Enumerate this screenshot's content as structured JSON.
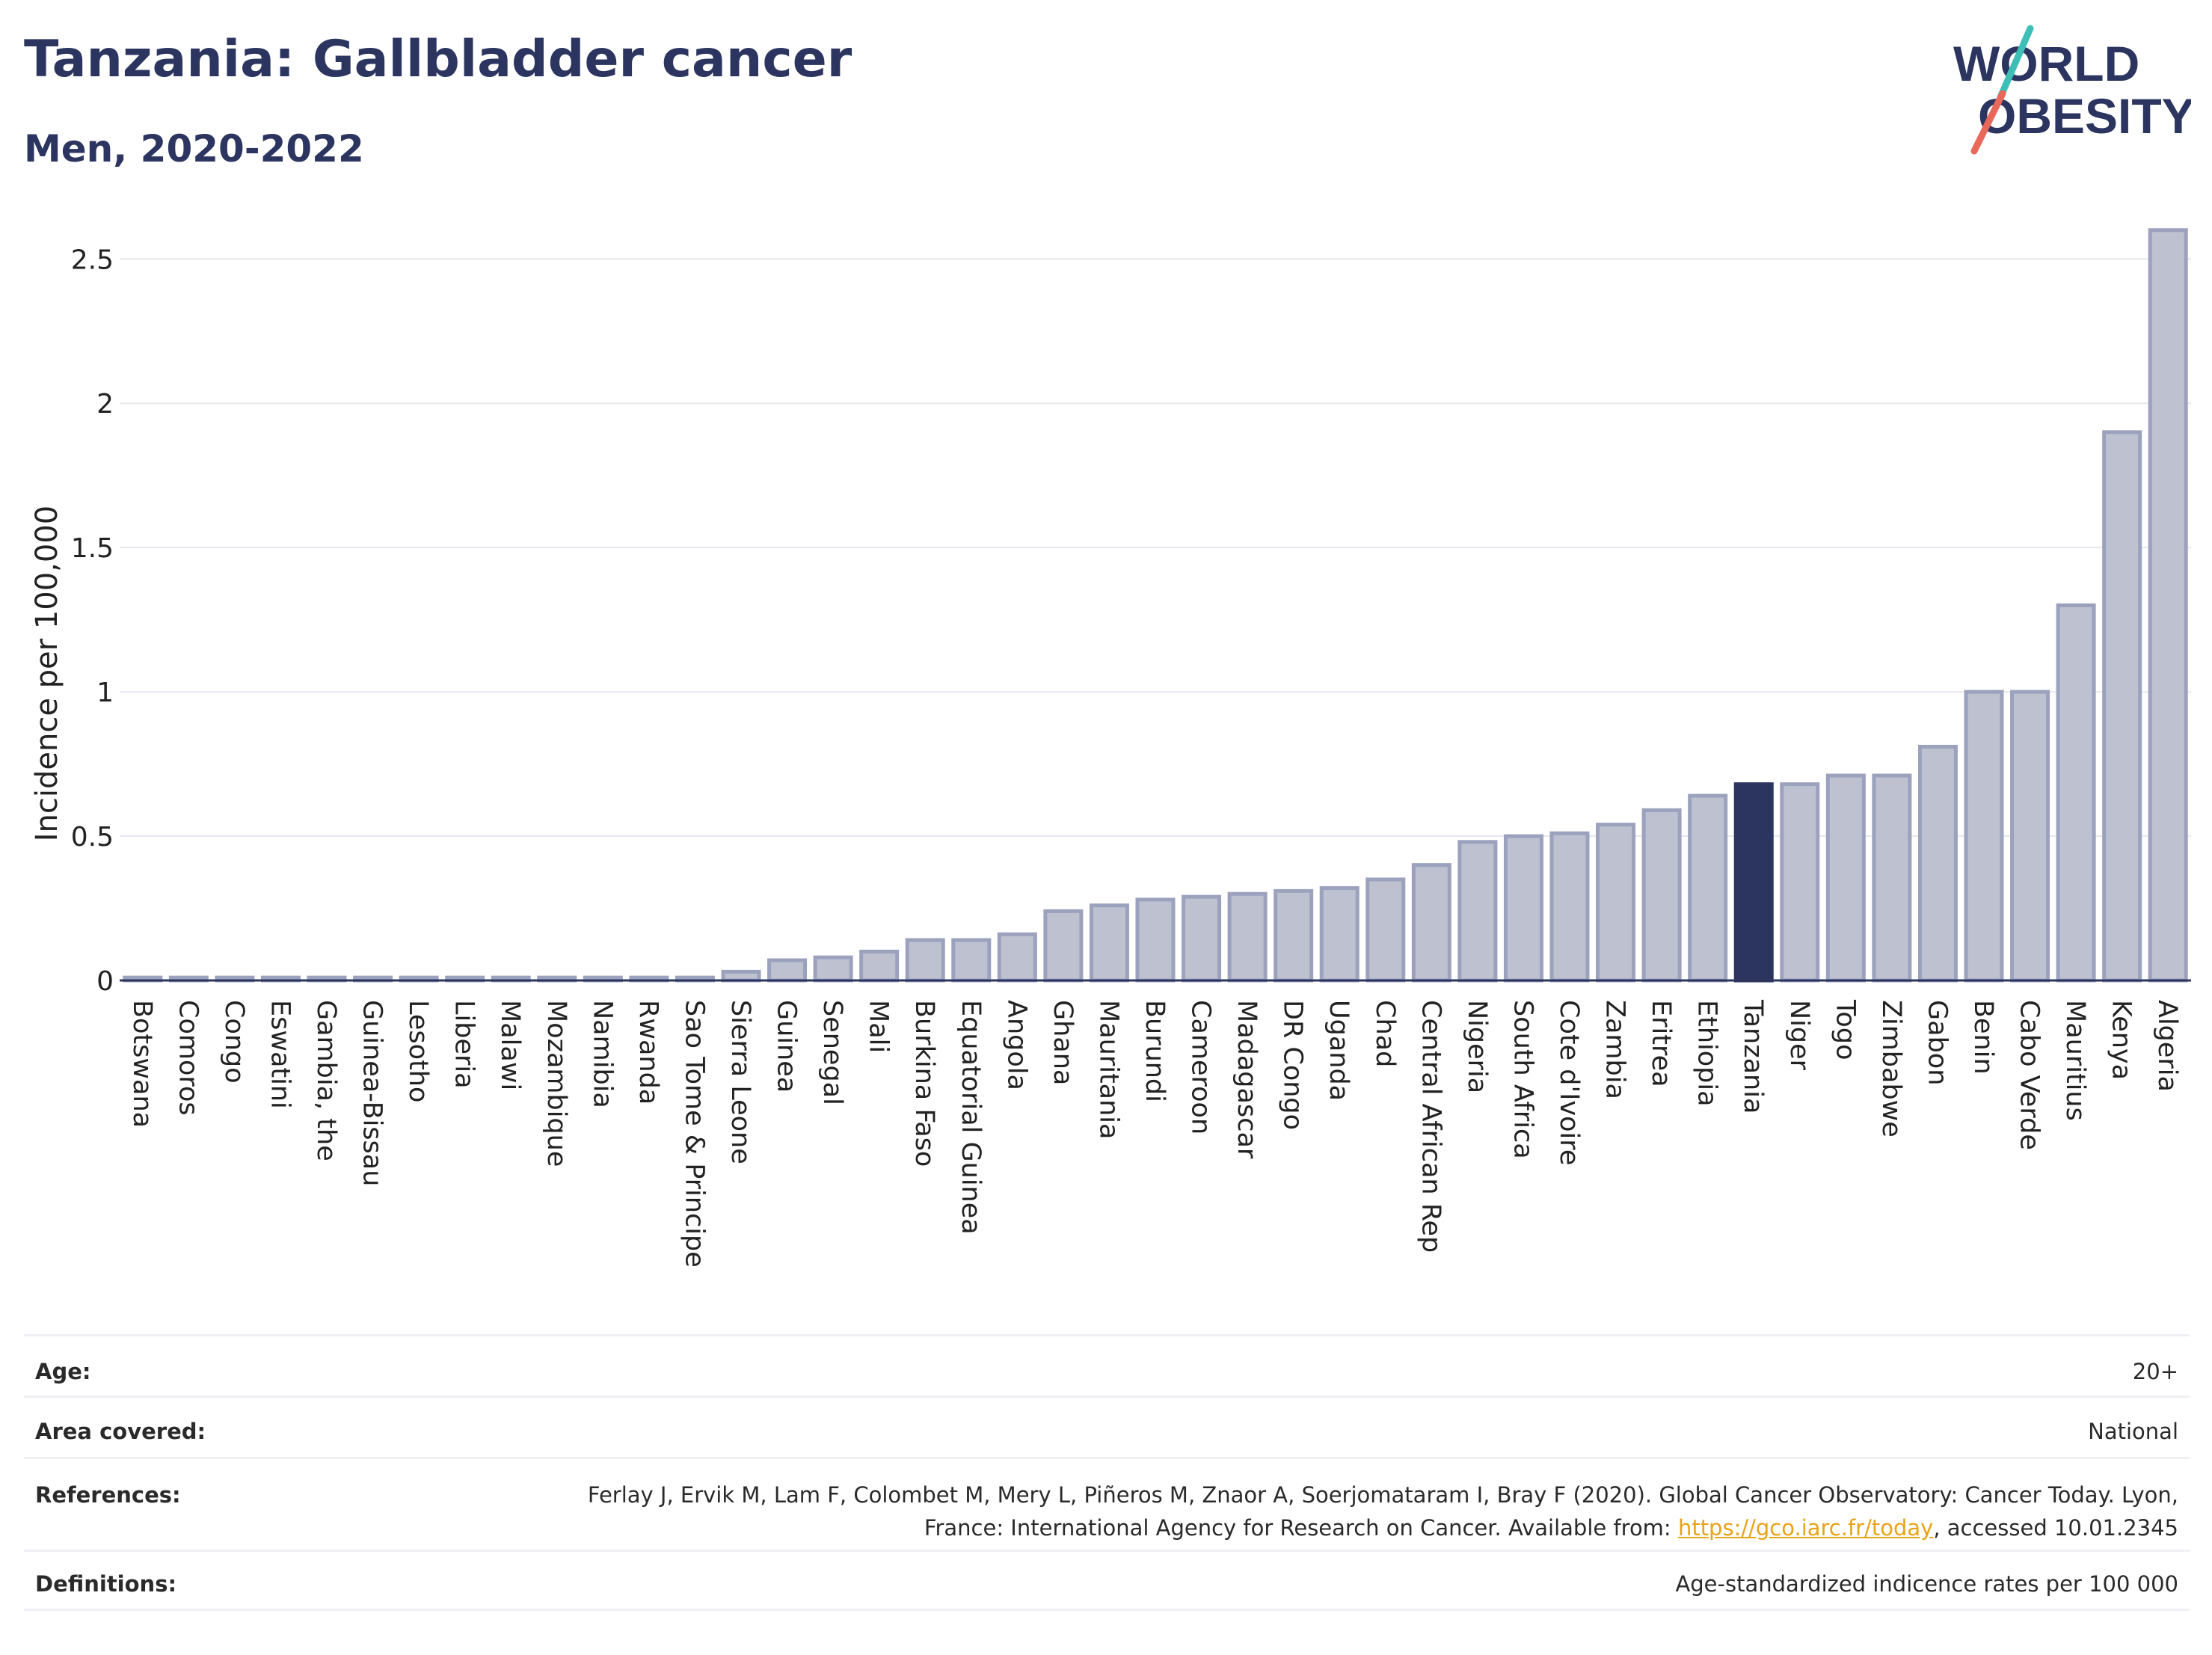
{
  "header": {
    "title": "Tanzania: Gallbladder cancer",
    "subtitle": "Men, 2020-2022"
  },
  "logo": {
    "line1": "WORLD",
    "line2": "OBESITY",
    "text_color": "#2b3560",
    "slash_colors": [
      "#3dbfb8",
      "#e8685a"
    ]
  },
  "chart_data": {
    "type": "bar",
    "title": "Tanzania: Gallbladder cancer",
    "subtitle": "Men, 2020-2022",
    "ylabel": "Incidence per 100,000",
    "xlabel": "",
    "ylim": [
      0,
      2.62
    ],
    "yticks": [
      0,
      0.5,
      1,
      1.5,
      2,
      2.5
    ],
    "ytick_labels": [
      "0",
      "0.5",
      "1",
      "1.5",
      "2",
      "2.5"
    ],
    "grid": true,
    "highlight": "Tanzania",
    "colors": {
      "bar": "#bdc1d0",
      "bar_edge": "#9ca2bd",
      "highlight": "#2b3560",
      "grid": "#e6e8ee"
    },
    "categories": [
      "Botswana",
      "Comoros",
      "Congo",
      "Eswatini",
      "Gambia, the",
      "Guinea-Bissau",
      "Lesotho",
      "Liberia",
      "Malawi",
      "Mozambique",
      "Namibia",
      "Rwanda",
      "Sao Tome & Principe",
      "Sierra Leone",
      "Guinea",
      "Senegal",
      "Mali",
      "Burkina Faso",
      "Equatorial Guinea",
      "Angola",
      "Ghana",
      "Mauritania",
      "Burundi",
      "Cameroon",
      "Madagascar",
      "DR Congo",
      "Uganda",
      "Chad",
      "Central African Rep",
      "Nigeria",
      "South Africa",
      "Cote d'Ivoire",
      "Zambia",
      "Eritrea",
      "Ethiopia",
      "Tanzania",
      "Niger",
      "Togo",
      "Zimbabwe",
      "Gabon",
      "Benin",
      "Cabo Verde",
      "Mauritius",
      "Kenya",
      "Algeria"
    ],
    "values": [
      0.01,
      0.01,
      0.01,
      0.01,
      0.01,
      0.01,
      0.01,
      0.01,
      0.01,
      0.01,
      0.01,
      0.01,
      0.01,
      0.03,
      0.07,
      0.08,
      0.1,
      0.14,
      0.14,
      0.16,
      0.24,
      0.26,
      0.28,
      0.29,
      0.3,
      0.31,
      0.32,
      0.35,
      0.4,
      0.48,
      0.5,
      0.51,
      0.54,
      0.59,
      0.64,
      0.68,
      0.68,
      0.71,
      0.71,
      0.81,
      1.0,
      1.0,
      1.3,
      1.9,
      2.6
    ]
  },
  "info": {
    "age_label": "Age:",
    "age_value": "20+",
    "area_label": "Area covered:",
    "area_value": "National",
    "references_label": "References:",
    "references_text": "Ferlay J, Ervik M, Lam F, Colombet M, Mery L, Piñeros M, Znaor A, Soerjomataram I, Bray F (2020). Global Cancer Observatory: Cancer Today. Lyon, France: International Agency for Research on Cancer. Available from:",
    "references_link": "https://gco.iarc.fr/today",
    "references_suffix": ", accessed 10.01.2345",
    "definitions_label": "Definitions:",
    "definitions_value": "Age-standardized indicence rates per 100 000"
  }
}
